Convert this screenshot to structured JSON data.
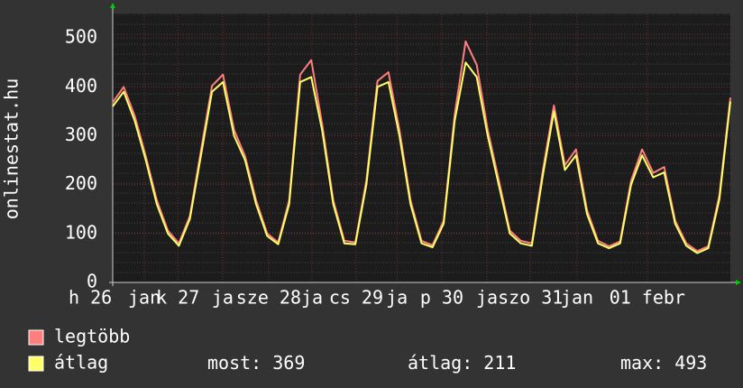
{
  "chart_data": {
    "type": "line",
    "ylabel": "onlinestat.hu",
    "xlim": [
      0,
      168
    ],
    "ylim": [
      0,
      550
    ],
    "yticks": [
      0,
      100,
      200,
      300,
      400,
      500
    ],
    "xticks": [
      {
        "value": -6.1,
        "label": "h 26"
      },
      {
        "value": 8.6,
        "label": "jan"
      },
      {
        "value": 17.7,
        "label": "k 27"
      },
      {
        "value": 29.9,
        "label": "ja"
      },
      {
        "value": 42.4,
        "label": "sze 28"
      },
      {
        "value": 54.2,
        "label": "ja"
      },
      {
        "value": 66.2,
        "label": "cs 29"
      },
      {
        "value": 77.3,
        "label": "ja"
      },
      {
        "value": 89.5,
        "label": "p 30"
      },
      {
        "value": 101.8,
        "label": "ja"
      },
      {
        "value": 113.6,
        "label": "szo 31"
      },
      {
        "value": 126.3,
        "label": "jan"
      },
      {
        "value": 145.4,
        "label": "01 febr"
      }
    ],
    "grid": true,
    "x": [
      0,
      3,
      6,
      9,
      12,
      15,
      18,
      21,
      24,
      27,
      30,
      33,
      36,
      39,
      42,
      45,
      48,
      51,
      54,
      57,
      60,
      63,
      66,
      69,
      72,
      75,
      78,
      81,
      84,
      87,
      90,
      93,
      96,
      99,
      102,
      105,
      108,
      111,
      114,
      117,
      120,
      123,
      126,
      129,
      132,
      135,
      138,
      141,
      144,
      147,
      150,
      153,
      156,
      159,
      162,
      165,
      168
    ],
    "series": [
      {
        "name": "legtöbb",
        "color": "#ff7f7f",
        "values": [
          368,
          400,
          340,
          258,
          168,
          106,
          80,
          136,
          270,
          402,
          425,
          312,
          258,
          168,
          100,
          82,
          168,
          425,
          455,
          322,
          168,
          85,
          82,
          208,
          412,
          430,
          312,
          168,
          85,
          76,
          126,
          342,
          493,
          445,
          312,
          210,
          106,
          85,
          80,
          230,
          362,
          240,
          272,
          148,
          85,
          74,
          84,
          208,
          272,
          224,
          236,
          126,
          80,
          64,
          74,
          178,
          378
        ]
      },
      {
        "name": "átlag",
        "color": "#ffff66",
        "values": [
          360,
          390,
          330,
          250,
          160,
          100,
          75,
          130,
          260,
          390,
          410,
          300,
          250,
          160,
          95,
          78,
          160,
          410,
          420,
          310,
          160,
          80,
          78,
          200,
          400,
          410,
          300,
          160,
          80,
          72,
          120,
          330,
          450,
          420,
          300,
          200,
          100,
          80,
          75,
          220,
          350,
          230,
          260,
          140,
          80,
          70,
          80,
          200,
          260,
          215,
          225,
          120,
          75,
          60,
          70,
          170,
          370
        ]
      }
    ],
    "stats": [
      {
        "label": "most:",
        "value": 369
      },
      {
        "label": "átlag:",
        "value": 211
      },
      {
        "label": "max:",
        "value": 493
      }
    ]
  }
}
